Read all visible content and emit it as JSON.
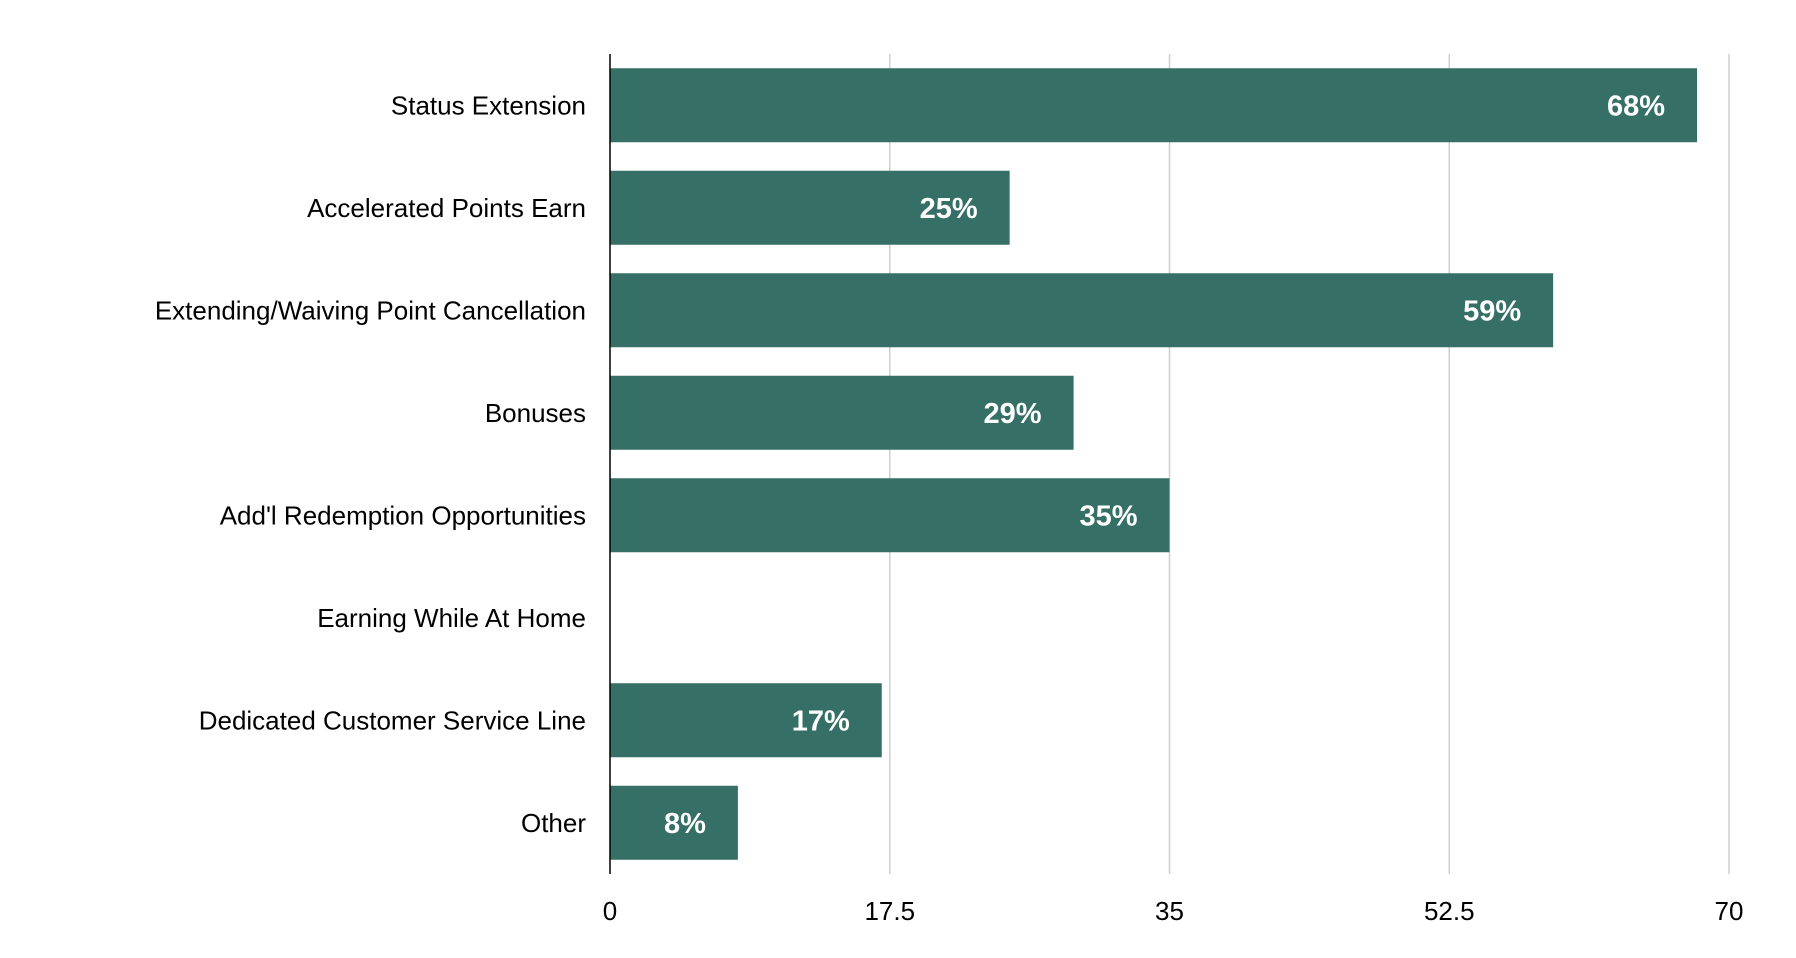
{
  "chart_data": {
    "type": "bar",
    "orientation": "horizontal",
    "title": "",
    "xlabel": "",
    "ylabel": "",
    "categories": [
      "Status Extension",
      "Accelerated Points Earn",
      "Extending/Waiving Point Cancellation",
      "Bonuses",
      "Add'l Redemption Opportunities",
      "Earning While At Home",
      "Dedicated Customer Service Line",
      "Other"
    ],
    "values": [
      68,
      25,
      59,
      29,
      35,
      null,
      17,
      8
    ],
    "data_labels": [
      "68%",
      "25%",
      "59%",
      "29%",
      "35%",
      "",
      "17%",
      "8%"
    ],
    "xlim": [
      0,
      70
    ],
    "x_ticks": [
      "0",
      "17.5",
      "35",
      "52.5",
      "70"
    ],
    "grid": true,
    "legend": "none",
    "bar_color": "#366f66"
  }
}
